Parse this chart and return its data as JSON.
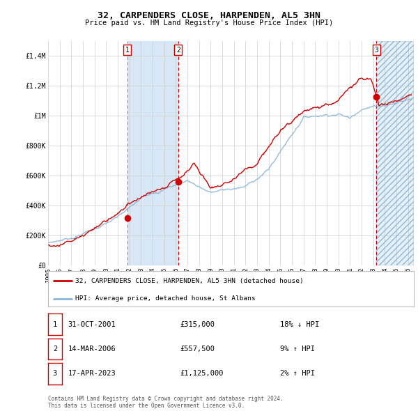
{
  "title": "32, CARPENDERS CLOSE, HARPENDEN, AL5 3HN",
  "subtitle": "Price paid vs. HM Land Registry's House Price Index (HPI)",
  "hpi_color": "#8ab4d8",
  "price_color": "#cc0000",
  "marker_color": "#cc0000",
  "bg_color": "#ffffff",
  "grid_color": "#cccccc",
  "ylim": [
    0,
    1500000
  ],
  "xlim_start": 1995.0,
  "xlim_end": 2026.5,
  "yticks": [
    0,
    200000,
    400000,
    600000,
    800000,
    1000000,
    1200000,
    1400000
  ],
  "ytick_labels": [
    "£0",
    "£200K",
    "£400K",
    "£600K",
    "£800K",
    "£1M",
    "£1.2M",
    "£1.4M"
  ],
  "xtick_years": [
    1995,
    1996,
    1997,
    1998,
    1999,
    2000,
    2001,
    2002,
    2003,
    2004,
    2005,
    2006,
    2007,
    2008,
    2009,
    2010,
    2011,
    2012,
    2013,
    2014,
    2015,
    2016,
    2017,
    2018,
    2019,
    2020,
    2021,
    2022,
    2023,
    2024,
    2025,
    2026
  ],
  "sale1_x": 2001.83,
  "sale1_y": 315000,
  "sale1_label": "1",
  "sale2_x": 2006.21,
  "sale2_y": 557500,
  "sale2_label": "2",
  "sale3_x": 2023.29,
  "sale3_y": 1125000,
  "sale3_label": "3",
  "legend_line1": "32, CARPENDERS CLOSE, HARPENDEN, AL5 3HN (detached house)",
  "legend_line2": "HPI: Average price, detached house, St Albans",
  "table_row1": [
    "1",
    "31-OCT-2001",
    "£315,000",
    "18% ↓ HPI"
  ],
  "table_row2": [
    "2",
    "14-MAR-2006",
    "£557,500",
    "9% ↑ HPI"
  ],
  "table_row3": [
    "3",
    "17-APR-2023",
    "£1,125,000",
    "2% ↑ HPI"
  ],
  "footnote": "Contains HM Land Registry data © Crown copyright and database right 2024.\nThis data is licensed under the Open Government Licence v3.0.",
  "shaded_region1_start": 2001.83,
  "shaded_region1_end": 2006.21,
  "shaded_region2_start": 2023.29,
  "shaded_region2_end": 2026.5
}
